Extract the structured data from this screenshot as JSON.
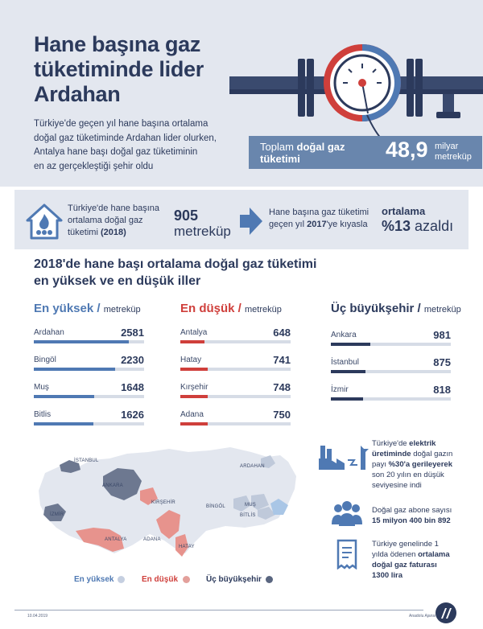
{
  "header": {
    "title_lines": [
      "Hane başına gaz",
      "tüketiminde lider",
      "Ardahan"
    ],
    "subtitle_lines": [
      "Türkiye'de geçen yıl hane başına ortalama",
      "doğal gaz tüketiminde Ardahan lider olurken,",
      "Antalya hane başı doğal gaz tüketiminin",
      "en az gerçekleştiği şehir oldu"
    ],
    "total_label_prefix": "Toplam",
    "total_label_bold1": "doğal gaz",
    "total_label_bold2": "tüketimi",
    "total_value": "48,9",
    "total_unit_line1": "milyar",
    "total_unit_line2": "metreküp"
  },
  "stats": {
    "avg_text_lines": [
      "Türkiye'de hane başına",
      "ortalama doğal gaz"
    ],
    "avg_text_line3": "tüketimi",
    "avg_year": "(2018)",
    "avg_value": "905",
    "avg_unit": "metreküp",
    "compare_line1": "Hane başına gaz tüketimi",
    "compare_line2_pre": "geçen yıl",
    "compare_year": "2017",
    "compare_line2_post": "'ye kıyasla",
    "change_label": "ortalama",
    "change_pct": "%13",
    "change_word": "azaldı"
  },
  "section": {
    "title_lines": [
      "2018'de hane başı ortalama doğal gaz tüketimi",
      "en yüksek ve en düşük iller"
    ]
  },
  "columns": [
    {
      "head": "En yüksek /",
      "unit": "metreküp",
      "color": "#4f79b3",
      "rows": [
        {
          "name": "Ardahan",
          "value": "2581",
          "frac": 0.86
        },
        {
          "name": "Bingöl",
          "value": "2230",
          "frac": 0.74
        },
        {
          "name": "Muş",
          "value": "1648",
          "frac": 0.55
        },
        {
          "name": "Bitlis",
          "value": "1626",
          "frac": 0.54
        }
      ]
    },
    {
      "head": "En düşük /",
      "unit": "metreküp",
      "color": "#cf3f3b",
      "rows": [
        {
          "name": "Antalya",
          "value": "648",
          "frac": 0.22
        },
        {
          "name": "Hatay",
          "value": "741",
          "frac": 0.25
        },
        {
          "name": "Kırşehir",
          "value": "748",
          "frac": 0.25
        },
        {
          "name": "Adana",
          "value": "750",
          "frac": 0.25
        }
      ]
    },
    {
      "head": "Üç büyükşehir /",
      "unit": "metreküp",
      "color": "#2c3a5c",
      "rows": [
        {
          "name": "Ankara",
          "value": "981",
          "frac": 0.33
        },
        {
          "name": "İstanbul",
          "value": "875",
          "frac": 0.29
        },
        {
          "name": "İzmir",
          "value": "818",
          "frac": 0.27
        }
      ]
    }
  ],
  "info": [
    {
      "icon": "factory-icon",
      "pre": "Türkiye'de",
      "bold1": "elektrik",
      "line2_bold": "üretiminde",
      "line2_post": "doğal gazın",
      "line3_pre": "payı",
      "line3_bold": "%30'a gerileyerek",
      "line4": "son 20 yılın en düşük",
      "line5": "seviyesine indi"
    },
    {
      "icon": "people-icon",
      "line1": "Doğal gaz abone sayısı",
      "line2_bold": "15 milyon 400 bin 892"
    },
    {
      "icon": "bill-icon",
      "line1": "Türkiye genelinde 1",
      "line2_pre": "yılda ödenen",
      "line2_bold": "ortalama",
      "line3_bold": "doğal gaz faturası",
      "line4_bold": "1300 lira"
    }
  ],
  "map": {
    "labels": [
      "İSTANBUL",
      "ANKARA",
      "KIRŞEHİR",
      "İZMİR",
      "ANTALYA",
      "ADANA",
      "HATAY",
      "ARDAHAN",
      "BİNGÖL",
      "MUŞ",
      "BİTLİS"
    ]
  },
  "legend": [
    {
      "label": "En yüksek",
      "color": "#4f79b3",
      "dot": "#c5cfe0"
    },
    {
      "label": "En düşük",
      "color": "#cf3f3b",
      "dot": "#e3a09b"
    },
    {
      "label": "Üç büyükşehir",
      "color": "#2c3a5c",
      "dot": "#5a6680"
    }
  ],
  "footer": {
    "date": "10.04.2019",
    "agency": "Anadolu Ajansı",
    "logo_text": "AA"
  },
  "colors": {
    "navy": "#2c3a5c",
    "blue": "#4f79b3",
    "red": "#cf3f3b",
    "gray_bg": "#e3e7ef",
    "steel": "#6986ad"
  }
}
